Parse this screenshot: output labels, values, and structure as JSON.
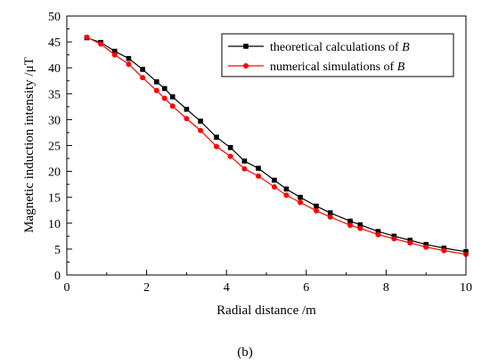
{
  "chart_data": {
    "type": "line",
    "title": "",
    "xlabel": "Radial distance /m",
    "ylabel": "Magnetic induction intensity /μT",
    "xlim": [
      0,
      10
    ],
    "ylim": [
      0,
      50
    ],
    "xticks": [
      0,
      2,
      4,
      6,
      8,
      10
    ],
    "yticks": [
      0,
      5,
      10,
      15,
      20,
      25,
      30,
      35,
      40,
      45,
      50
    ],
    "grid": false,
    "legend_position": "top-right",
    "series": [
      {
        "name": "theoretical calculations of ",
        "name_italic": "B",
        "color": "#000000",
        "marker": "square",
        "x": [
          0.5,
          0.85,
          1.2,
          1.55,
          1.9,
          2.25,
          2.45,
          2.65,
          3.0,
          3.35,
          3.75,
          4.1,
          4.45,
          4.8,
          5.2,
          5.5,
          5.85,
          6.25,
          6.6,
          7.1,
          7.35,
          7.8,
          8.2,
          8.6,
          9.0,
          9.45,
          10.0
        ],
        "y": [
          45.8,
          44.9,
          43.2,
          41.8,
          39.7,
          37.3,
          36.0,
          34.4,
          32.0,
          29.7,
          26.6,
          24.6,
          22.0,
          20.6,
          18.3,
          16.6,
          15.0,
          13.3,
          12.0,
          10.4,
          9.7,
          8.4,
          7.5,
          6.7,
          5.9,
          5.2,
          4.5
        ]
      },
      {
        "name": "numerical simulations of ",
        "name_italic": "B",
        "color": "#ff0000",
        "marker": "circle",
        "x": [
          0.5,
          0.85,
          1.2,
          1.55,
          1.9,
          2.25,
          2.45,
          2.65,
          3.0,
          3.35,
          3.75,
          4.1,
          4.45,
          4.8,
          5.2,
          5.5,
          5.85,
          6.25,
          6.6,
          7.1,
          7.35,
          7.8,
          8.2,
          8.6,
          9.0,
          9.45,
          10.0
        ],
        "y": [
          45.9,
          44.6,
          42.5,
          40.7,
          38.1,
          35.6,
          34.1,
          32.6,
          30.2,
          27.9,
          24.8,
          22.9,
          20.5,
          19.1,
          17.0,
          15.4,
          14.0,
          12.4,
          11.2,
          9.6,
          9.0,
          7.8,
          7.0,
          6.2,
          5.4,
          4.7,
          4.0
        ]
      }
    ]
  },
  "caption": "(b)"
}
